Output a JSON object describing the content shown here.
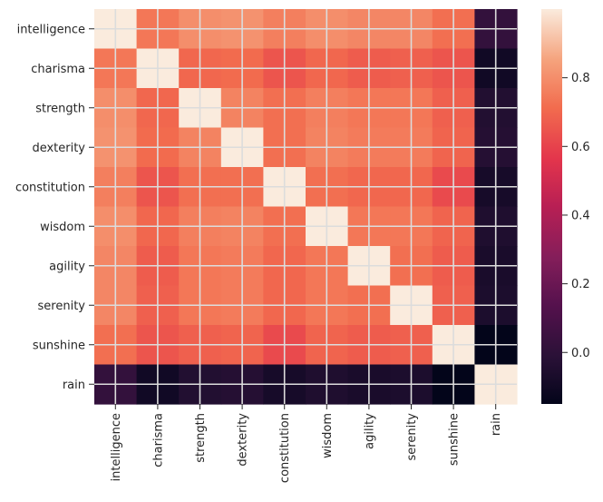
{
  "chart_data": {
    "type": "heatmap",
    "title": "",
    "xlabel": "",
    "ylabel": "",
    "categories": [
      "intelligence",
      "charisma",
      "strength",
      "dexterity",
      "constitution",
      "wisdom",
      "agility",
      "serenity",
      "sunshine",
      "rain"
    ],
    "values": [
      [
        1.0,
        0.74,
        0.8,
        0.81,
        0.76,
        0.8,
        0.78,
        0.78,
        0.72,
        0.02
      ],
      [
        0.74,
        1.0,
        0.7,
        0.71,
        0.65,
        0.7,
        0.67,
        0.68,
        0.65,
        -0.1
      ],
      [
        0.8,
        0.7,
        1.0,
        0.77,
        0.72,
        0.76,
        0.74,
        0.74,
        0.68,
        -0.04
      ],
      [
        0.81,
        0.71,
        0.77,
        1.0,
        0.72,
        0.77,
        0.75,
        0.75,
        0.69,
        -0.03
      ],
      [
        0.76,
        0.65,
        0.72,
        0.72,
        1.0,
        0.72,
        0.7,
        0.7,
        0.62,
        -0.08
      ],
      [
        0.8,
        0.7,
        0.76,
        0.77,
        0.72,
        1.0,
        0.74,
        0.74,
        0.69,
        -0.05
      ],
      [
        0.78,
        0.67,
        0.74,
        0.75,
        0.7,
        0.74,
        1.0,
        0.72,
        0.67,
        -0.07
      ],
      [
        0.78,
        0.68,
        0.74,
        0.75,
        0.7,
        0.74,
        0.72,
        1.0,
        0.68,
        -0.06
      ],
      [
        0.72,
        0.65,
        0.68,
        0.69,
        0.62,
        0.69,
        0.67,
        0.68,
        1.0,
        -0.15
      ],
      [
        0.02,
        -0.1,
        -0.04,
        -0.03,
        -0.08,
        -0.05,
        -0.07,
        -0.06,
        -0.15,
        1.0
      ]
    ],
    "color_range": [
      -0.15,
      1.0
    ],
    "colormap": "rocket",
    "colorbar_ticks": [
      {
        "value": 0.0,
        "label": "0.0"
      },
      {
        "value": 0.2,
        "label": "0.2"
      },
      {
        "value": 0.4,
        "label": "0.4"
      },
      {
        "value": 0.6,
        "label": "0.6"
      },
      {
        "value": 0.8,
        "label": "0.8"
      }
    ],
    "grid": true,
    "grid_color": "#dcdcdc",
    "tick_color": "#262626"
  }
}
